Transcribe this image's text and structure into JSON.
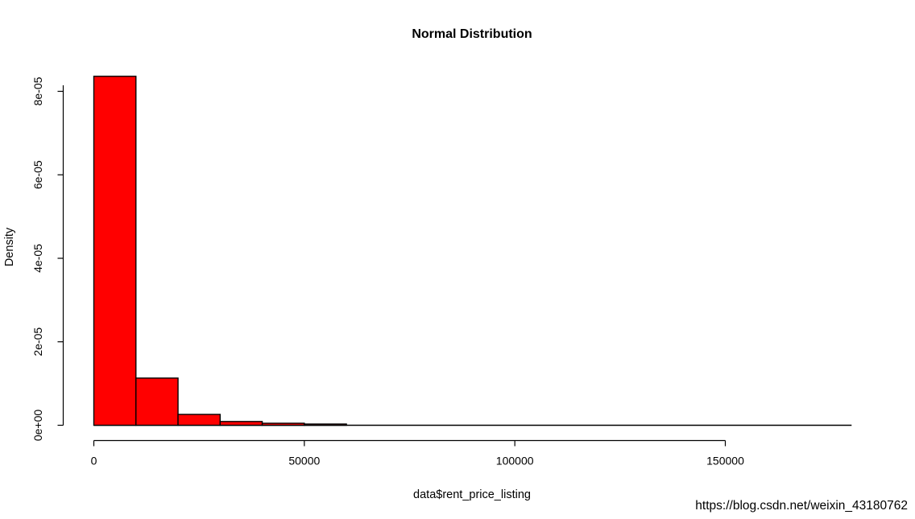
{
  "chart_data": {
    "type": "bar",
    "subtype": "histogram",
    "title": "Normal Distribution",
    "xlabel": "data$rent_price_listing",
    "ylabel": "Density",
    "bar_fill": "#FF0000",
    "bar_stroke": "#000000",
    "axis_color": "#000000",
    "grid": false,
    "legend": false,
    "xlim": [
      0,
      180000
    ],
    "ylim": [
      0,
      8.4e-05
    ],
    "bin_width": 10000,
    "breaks": [
      0,
      10000,
      20000,
      30000,
      40000,
      50000,
      60000,
      70000,
      80000,
      90000,
      100000,
      110000,
      120000,
      130000,
      140000,
      150000,
      160000,
      170000,
      180000
    ],
    "densities": [
      8.36e-05,
      1.13e-05,
      2.6e-06,
      9e-07,
      4.8e-07,
      2.9e-07,
      1.2e-07,
      8e-08,
      6e-08,
      4e-08,
      3e-08,
      2e-08,
      2e-08,
      1e-08,
      1e-08,
      1e-08,
      1e-08,
      1e-08
    ],
    "x_ticks": [
      {
        "value": 0,
        "label": "0"
      },
      {
        "value": 50000,
        "label": "50000"
      },
      {
        "value": 100000,
        "label": "100000"
      },
      {
        "value": 150000,
        "label": "150000"
      }
    ],
    "y_ticks": [
      {
        "value": 0,
        "label": "0e+00"
      },
      {
        "value": 2e-05,
        "label": "2e-05"
      },
      {
        "value": 4e-05,
        "label": "4e-05"
      },
      {
        "value": 6e-05,
        "label": "6e-05"
      },
      {
        "value": 8e-05,
        "label": "8e-05"
      }
    ]
  },
  "watermark": {
    "text": "https://blog.csdn.net/weixin_43180762",
    "color": "#eaeaea"
  }
}
